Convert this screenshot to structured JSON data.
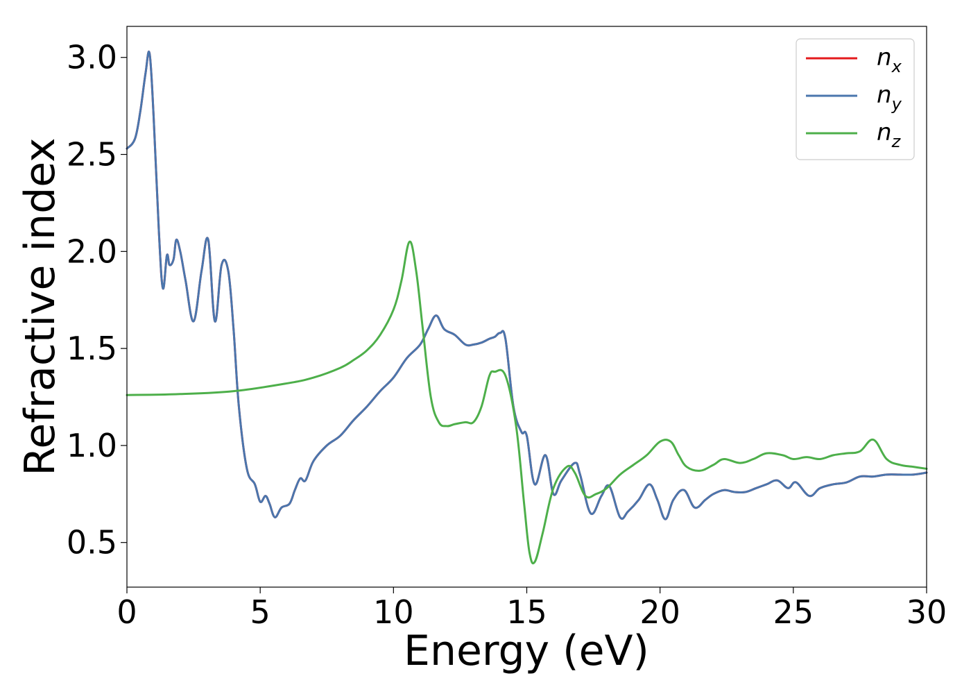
{
  "chart_data": {
    "type": "line",
    "title": "",
    "xlabel": "Energy (eV)",
    "ylabel": "Refractive index",
    "xlim": [
      0,
      30
    ],
    "ylim": [
      0.27,
      3.16
    ],
    "xticks": [
      0,
      5,
      10,
      15,
      20,
      25,
      30
    ],
    "xtick_labels": [
      "0",
      "5",
      "10",
      "15",
      "20",
      "25",
      "30"
    ],
    "yticks": [
      0.5,
      1.0,
      1.5,
      2.0,
      2.5,
      3.0
    ],
    "ytick_labels": [
      "0.5",
      "1.0",
      "1.5",
      "2.0",
      "2.5",
      "3.0"
    ],
    "grid": false,
    "legend_position": "top-right",
    "series": [
      {
        "name": "n",
        "subscript": "x",
        "color": "#e41a1c",
        "x": [
          0,
          0.3,
          0.5,
          0.7,
          0.85,
          1.0,
          1.2,
          1.35,
          1.5,
          1.6,
          1.75,
          1.85,
          2.0,
          2.2,
          2.5,
          2.8,
          3.05,
          3.3,
          3.55,
          3.8,
          4.0,
          4.2,
          4.5,
          4.8,
          5.0,
          5.2,
          5.35,
          5.55,
          5.8,
          6.1,
          6.3,
          6.5,
          6.7,
          7.0,
          7.5,
          8.0,
          8.5,
          9.0,
          9.5,
          10.0,
          10.5,
          11.0,
          11.3,
          11.6,
          11.9,
          12.3,
          12.7,
          13.0,
          13.3,
          13.6,
          13.8,
          14.0,
          14.2,
          14.5,
          14.8,
          15.0,
          15.3,
          15.7,
          16.0,
          16.3,
          16.8,
          17.0,
          17.4,
          17.8,
          18.1,
          18.5,
          18.8,
          19.2,
          19.6,
          19.9,
          20.2,
          20.5,
          20.9,
          21.3,
          21.7,
          22.0,
          22.4,
          22.8,
          23.2,
          23.6,
          24.0,
          24.4,
          24.8,
          25.1,
          25.6,
          26.0,
          26.5,
          27.0,
          27.5,
          28.0,
          28.5,
          29.0,
          29.5,
          30.0
        ],
        "values": [
          2.53,
          2.58,
          2.72,
          2.92,
          3.02,
          2.7,
          2.1,
          1.81,
          1.98,
          1.93,
          1.96,
          2.06,
          2.0,
          1.85,
          1.64,
          1.9,
          2.06,
          1.64,
          1.93,
          1.9,
          1.6,
          1.2,
          0.88,
          0.8,
          0.71,
          0.74,
          0.7,
          0.63,
          0.68,
          0.7,
          0.77,
          0.83,
          0.82,
          0.92,
          1.0,
          1.05,
          1.13,
          1.2,
          1.28,
          1.35,
          1.45,
          1.52,
          1.6,
          1.67,
          1.6,
          1.57,
          1.52,
          1.52,
          1.53,
          1.55,
          1.56,
          1.58,
          1.55,
          1.2,
          1.07,
          1.05,
          0.8,
          0.95,
          0.75,
          0.82,
          0.91,
          0.85,
          0.65,
          0.74,
          0.79,
          0.63,
          0.66,
          0.72,
          0.8,
          0.72,
          0.62,
          0.72,
          0.77,
          0.68,
          0.72,
          0.75,
          0.77,
          0.76,
          0.76,
          0.78,
          0.8,
          0.82,
          0.78,
          0.81,
          0.74,
          0.78,
          0.8,
          0.81,
          0.84,
          0.84,
          0.85,
          0.85,
          0.85,
          0.86
        ]
      },
      {
        "name": "n",
        "subscript": "y",
        "color": "#4a76ad",
        "x": [
          0,
          0.3,
          0.5,
          0.7,
          0.85,
          1.0,
          1.2,
          1.35,
          1.5,
          1.6,
          1.75,
          1.85,
          2.0,
          2.2,
          2.5,
          2.8,
          3.05,
          3.3,
          3.55,
          3.8,
          4.0,
          4.2,
          4.5,
          4.8,
          5.0,
          5.2,
          5.35,
          5.55,
          5.8,
          6.1,
          6.3,
          6.5,
          6.7,
          7.0,
          7.5,
          8.0,
          8.5,
          9.0,
          9.5,
          10.0,
          10.5,
          11.0,
          11.3,
          11.6,
          11.9,
          12.3,
          12.7,
          13.0,
          13.3,
          13.6,
          13.8,
          14.0,
          14.2,
          14.5,
          14.8,
          15.0,
          15.3,
          15.7,
          16.0,
          16.3,
          16.8,
          17.0,
          17.4,
          17.8,
          18.1,
          18.5,
          18.8,
          19.2,
          19.6,
          19.9,
          20.2,
          20.5,
          20.9,
          21.3,
          21.7,
          22.0,
          22.4,
          22.8,
          23.2,
          23.6,
          24.0,
          24.4,
          24.8,
          25.1,
          25.6,
          26.0,
          26.5,
          27.0,
          27.5,
          28.0,
          28.5,
          29.0,
          29.5,
          30.0
        ],
        "values": [
          2.53,
          2.58,
          2.72,
          2.92,
          3.02,
          2.7,
          2.1,
          1.81,
          1.98,
          1.93,
          1.96,
          2.06,
          2.0,
          1.85,
          1.64,
          1.9,
          2.06,
          1.64,
          1.93,
          1.9,
          1.6,
          1.2,
          0.88,
          0.8,
          0.71,
          0.74,
          0.7,
          0.63,
          0.68,
          0.7,
          0.77,
          0.83,
          0.82,
          0.92,
          1.0,
          1.05,
          1.13,
          1.2,
          1.28,
          1.35,
          1.45,
          1.52,
          1.6,
          1.67,
          1.6,
          1.57,
          1.52,
          1.52,
          1.53,
          1.55,
          1.56,
          1.58,
          1.55,
          1.2,
          1.07,
          1.05,
          0.8,
          0.95,
          0.75,
          0.82,
          0.91,
          0.85,
          0.65,
          0.74,
          0.79,
          0.63,
          0.66,
          0.72,
          0.8,
          0.72,
          0.62,
          0.72,
          0.77,
          0.68,
          0.72,
          0.75,
          0.77,
          0.76,
          0.76,
          0.78,
          0.8,
          0.82,
          0.78,
          0.81,
          0.74,
          0.78,
          0.8,
          0.81,
          0.84,
          0.84,
          0.85,
          0.85,
          0.85,
          0.86
        ]
      },
      {
        "name": "n",
        "subscript": "z",
        "color": "#4daf4a",
        "x": [
          0,
          2,
          4,
          6,
          7,
          8,
          8.5,
          9,
          9.5,
          10.0,
          10.3,
          10.6,
          10.85,
          11.1,
          11.4,
          11.7,
          12.0,
          12.3,
          12.7,
          13.0,
          13.3,
          13.6,
          13.8,
          14.2,
          14.6,
          14.9,
          15.1,
          15.3,
          15.6,
          16.0,
          16.5,
          16.8,
          17.2,
          17.6,
          18.0,
          18.5,
          19.0,
          19.5,
          20.0,
          20.4,
          20.7,
          21.0,
          21.5,
          22.0,
          22.4,
          23.0,
          23.5,
          24.0,
          24.6,
          25.0,
          25.5,
          26.0,
          26.5,
          27.0,
          27.5,
          28.0,
          28.5,
          29.0,
          29.5,
          30.0
        ],
        "values": [
          1.26,
          1.265,
          1.28,
          1.32,
          1.35,
          1.4,
          1.44,
          1.49,
          1.57,
          1.7,
          1.85,
          2.05,
          1.9,
          1.6,
          1.25,
          1.12,
          1.1,
          1.11,
          1.12,
          1.12,
          1.2,
          1.36,
          1.38,
          1.36,
          1.1,
          0.7,
          0.45,
          0.4,
          0.55,
          0.78,
          0.89,
          0.86,
          0.74,
          0.75,
          0.78,
          0.85,
          0.9,
          0.95,
          1.02,
          1.02,
          0.95,
          0.89,
          0.87,
          0.9,
          0.93,
          0.91,
          0.93,
          0.96,
          0.95,
          0.93,
          0.94,
          0.93,
          0.95,
          0.96,
          0.97,
          1.03,
          0.93,
          0.9,
          0.89,
          0.88
        ]
      }
    ]
  }
}
